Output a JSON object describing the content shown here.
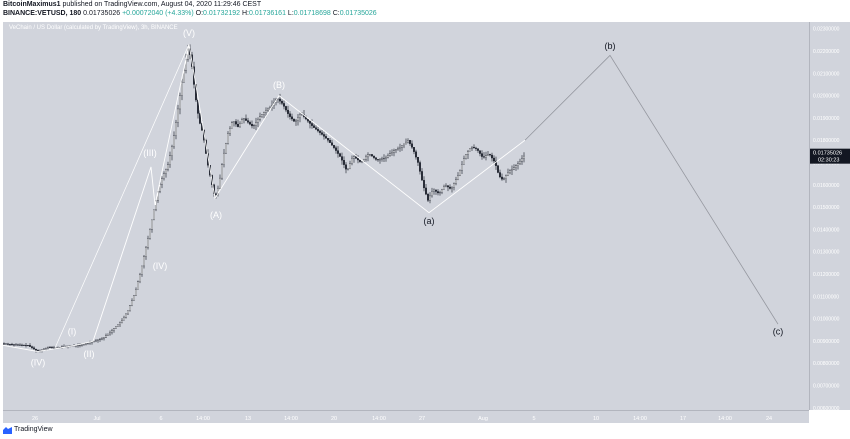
{
  "header": {
    "author": "BitcoinMaximus1",
    "published": "published on TradingView.com, August 04, 2020 11:29:46 CEST",
    "symbol": "BINANCE:VETUSD, 180",
    "last": "0.01735026",
    "change": "+0.00072040 (+4.33%)",
    "o_label": "O:",
    "o_value": "0.01732192",
    "h_label": "H:",
    "h_value": "0.01736161",
    "l_label": "L:",
    "l_value": "0.01718698",
    "c_label": "C:",
    "c_value": "0.01735026"
  },
  "chart_title": "VeChain / US Dollar (calculated by TradingView), 3h, BINANCE",
  "footer": {
    "brand": "TradingView",
    "logo_icon": "tradingview-logo-icon"
  },
  "colors": {
    "background": "#d1d4dc",
    "candles": "#131722",
    "wave_lines": "#ffffff",
    "projection": "#9598a1",
    "price_badge": "#131722"
  },
  "chart_data": {
    "type": "candlestick",
    "title": "VeChain / US Dollar (calculated by TradingView), 3h, BINANCE",
    "x_axis": {
      "ticks": [
        "26",
        "Jul",
        "6",
        "14:00",
        "13",
        "14:00",
        "20",
        "14:00",
        "27",
        "Aug",
        "5",
        "10",
        "14:00",
        "17",
        "14:00",
        "24"
      ]
    },
    "y_axis": {
      "side": "right",
      "ylim": [
        0.0059,
        0.0233
      ],
      "ticks": [
        "0.02300000",
        "0.02200000",
        "0.02100000",
        "0.02000000",
        "0.01900000",
        "0.01800000",
        "0.01700000",
        "0.01600000",
        "0.01500000",
        "0.01400000",
        "0.01300000",
        "0.01200000",
        "0.01100000",
        "0.01000000",
        "0.00900000",
        "0.00800000",
        "0.00700000",
        "0.00600000"
      ]
    },
    "last_price_label": "0.01735026",
    "countdown_label": "02:30:23",
    "price_path": [
      [
        0,
        0.00888
      ],
      [
        10,
        0.00883
      ],
      [
        25,
        0.0088
      ],
      [
        35,
        0.00852
      ],
      [
        45,
        0.00872
      ],
      [
        52,
        0.00868
      ],
      [
        60,
        0.00874
      ],
      [
        70,
        0.00878
      ],
      [
        80,
        0.00882
      ],
      [
        90,
        0.00898
      ],
      [
        100,
        0.00912
      ],
      [
        110,
        0.0095
      ],
      [
        118,
        0.00985
      ],
      [
        125,
        0.01035
      ],
      [
        132,
        0.01115
      ],
      [
        138,
        0.01215
      ],
      [
        143,
        0.0132
      ],
      [
        148,
        0.0142
      ],
      [
        152,
        0.0151
      ],
      [
        156,
        0.0159
      ],
      [
        160,
        0.0164
      ],
      [
        165,
        0.0169
      ],
      [
        170,
        0.0179
      ],
      [
        175,
        0.0194
      ],
      [
        180,
        0.0209
      ],
      [
        185,
        0.0221
      ],
      [
        188,
        0.0217
      ],
      [
        192,
        0.0201
      ],
      [
        196,
        0.0189
      ],
      [
        200,
        0.0183
      ],
      [
        204,
        0.0171
      ],
      [
        208,
        0.0162
      ],
      [
        212,
        0.0154
      ],
      [
        216,
        0.016
      ],
      [
        220,
        0.0172
      ],
      [
        225,
        0.0183
      ],
      [
        230,
        0.0189
      ],
      [
        235,
        0.0186
      ],
      [
        240,
        0.019
      ],
      [
        245,
        0.0188
      ],
      [
        250,
        0.0186
      ],
      [
        256,
        0.019
      ],
      [
        262,
        0.0193
      ],
      [
        268,
        0.0195
      ],
      [
        274,
        0.0199
      ],
      [
        280,
        0.0196
      ],
      [
        286,
        0.0191
      ],
      [
        292,
        0.0188
      ],
      [
        298,
        0.0192
      ],
      [
        304,
        0.0189
      ],
      [
        310,
        0.0186
      ],
      [
        318,
        0.0183
      ],
      [
        325,
        0.018
      ],
      [
        332,
        0.0176
      ],
      [
        338,
        0.0172
      ],
      [
        344,
        0.0166
      ],
      [
        350,
        0.0173
      ],
      [
        358,
        0.017
      ],
      [
        366,
        0.0174
      ],
      [
        374,
        0.0171
      ],
      [
        382,
        0.0172
      ],
      [
        390,
        0.0175
      ],
      [
        398,
        0.0177
      ],
      [
        405,
        0.018
      ],
      [
        410,
        0.0176
      ],
      [
        415,
        0.017
      ],
      [
        420,
        0.016
      ],
      [
        425,
        0.0153
      ],
      [
        430,
        0.0158
      ],
      [
        436,
        0.0156
      ],
      [
        442,
        0.016
      ],
      [
        448,
        0.0158
      ],
      [
        455,
        0.0164
      ],
      [
        462,
        0.0173
      ],
      [
        468,
        0.0177
      ],
      [
        474,
        0.0176
      ],
      [
        480,
        0.0172
      ],
      [
        486,
        0.0174
      ],
      [
        492,
        0.017
      ],
      [
        496,
        0.0164
      ],
      [
        500,
        0.0162
      ],
      [
        506,
        0.0166
      ],
      [
        512,
        0.0168
      ],
      [
        518,
        0.0171
      ],
      [
        522,
        0.01735
      ]
    ],
    "wave_labels": [
      {
        "text": "(IV)",
        "x": 35,
        "y": 0.0079
      },
      {
        "text": "(I)",
        "x": 69,
        "y": 0.00928
      },
      {
        "text": "(II)",
        "x": 86,
        "y": 0.00827
      },
      {
        "text": "(III)",
        "x": 147,
        "y": 0.0173
      },
      {
        "text": "(IV)",
        "x": 157,
        "y": 0.01223
      },
      {
        "text": "(V)",
        "x": 186,
        "y": 0.02268
      },
      {
        "text": "(A)",
        "x": 213,
        "y": 0.0145
      },
      {
        "text": "(B)",
        "x": 276,
        "y": 0.02035
      },
      {
        "text": "(a)",
        "x": 426,
        "y": 0.01424
      },
      {
        "text": "(b)",
        "x": 607,
        "y": 0.0221
      },
      {
        "text": "(c)",
        "x": 775,
        "y": 0.00928
      }
    ],
    "wave_lines": [
      [
        0,
        0.0088
      ],
      [
        35,
        0.00852
      ],
      [
        70,
        0.00878
      ],
      [
        90,
        0.00898
      ],
      [
        148,
        0.0168
      ],
      [
        152,
        0.0151
      ],
      [
        186,
        0.0223
      ],
      [
        212,
        0.0154
      ],
      [
        276,
        0.02
      ],
      [
        426,
        0.01475
      ],
      [
        522,
        0.018
      ],
      [
        607,
        0.0218
      ],
      [
        775,
        0.00975
      ]
    ],
    "outer_channel": [
      [
        52,
        0.00868
      ],
      [
        186,
        0.0223
      ]
    ]
  }
}
